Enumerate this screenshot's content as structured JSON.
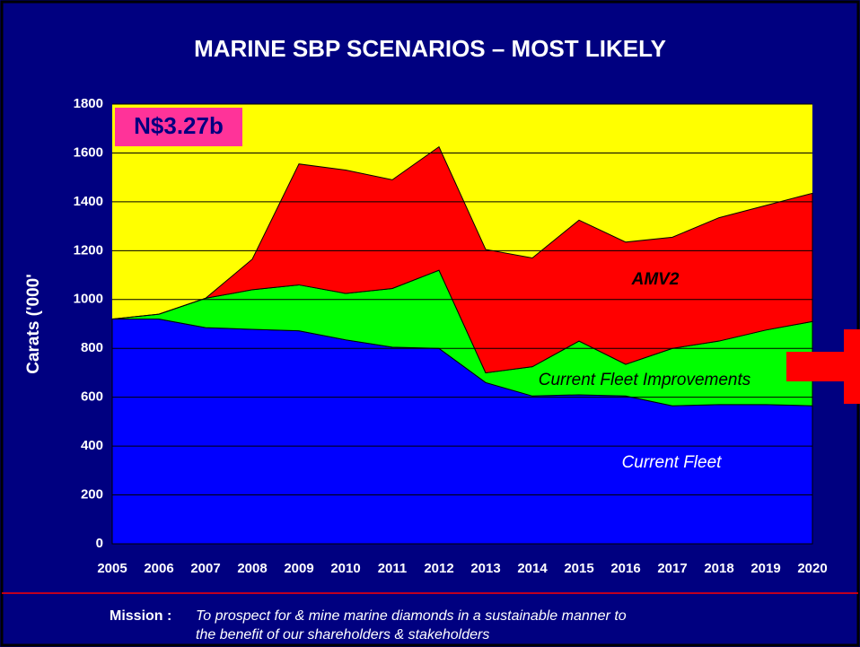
{
  "chart_data": {
    "type": "area",
    "stacked": true,
    "title": "MARINE SBP SCENARIOS – MOST LIKELY",
    "y_label": "Carats ('000'",
    "annotation": "N$3.27b",
    "categories": [
      "2005",
      "2006",
      "2007",
      "2008",
      "2009",
      "2010",
      "2011",
      "2012",
      "2013",
      "2014",
      "2015",
      "2016",
      "2017",
      "2018",
      "2019",
      "2020"
    ],
    "series": [
      {
        "name": "Current Fleet",
        "color": "#0000ff",
        "values": [
          920,
          920,
          885,
          878,
          872,
          835,
          805,
          800,
          660,
          605,
          610,
          605,
          565,
          570,
          570,
          565
        ]
      },
      {
        "name": "Current Fleet Improvements",
        "color": "#00ff00",
        "values": [
          0,
          20,
          120,
          162,
          188,
          190,
          240,
          320,
          40,
          120,
          220,
          130,
          235,
          260,
          305,
          345
        ]
      },
      {
        "name": "AMV2",
        "color": "#ff0000",
        "values": [
          0,
          0,
          0,
          125,
          495,
          505,
          445,
          505,
          505,
          445,
          495,
          500,
          455,
          505,
          510,
          525
        ]
      }
    ],
    "background": "#ffff00",
    "ylim": [
      0,
      1800
    ],
    "yticks": [
      0,
      200,
      400,
      600,
      800,
      1000,
      1200,
      1400,
      1600,
      1800
    ],
    "grid": true
  },
  "footer": {
    "label": "Mission :",
    "lines": [
      "To prospect for & mine marine diamonds in a sustainable manner to",
      "the benefit of our shareholders & stakeholders"
    ]
  }
}
